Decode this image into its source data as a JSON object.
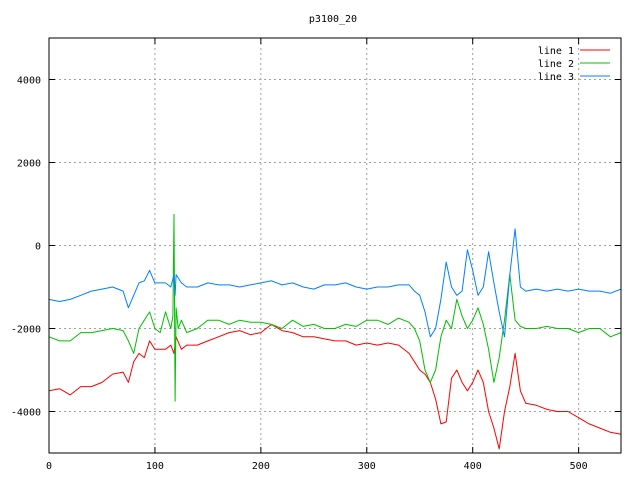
{
  "chart_data": {
    "type": "line",
    "title": "p3100_20",
    "xlabel": "",
    "ylabel": "",
    "xlim": [
      0,
      540
    ],
    "ylim": [
      -5000,
      5000
    ],
    "xticks": [
      0,
      100,
      200,
      300,
      400,
      500
    ],
    "yticks": [
      -4000,
      -2000,
      0,
      2000,
      4000
    ],
    "grid": true,
    "legend": "top-right",
    "series": [
      {
        "name": "line 1",
        "color": "#ff0000",
        "x": [
          0,
          10,
          20,
          30,
          40,
          50,
          60,
          70,
          75,
          80,
          85,
          90,
          95,
          100,
          110,
          115,
          118,
          120,
          125,
          130,
          140,
          150,
          160,
          170,
          180,
          190,
          200,
          210,
          220,
          230,
          240,
          250,
          260,
          270,
          280,
          290,
          300,
          310,
          320,
          330,
          340,
          345,
          350,
          355,
          360,
          365,
          370,
          375,
          380,
          385,
          390,
          395,
          400,
          405,
          410,
          415,
          420,
          425,
          430,
          435,
          440,
          445,
          450,
          460,
          470,
          480,
          490,
          500,
          510,
          520,
          530,
          540
        ],
        "y": [
          -3500,
          -3450,
          -3600,
          -3400,
          -3400,
          -3300,
          -3100,
          -3050,
          -3300,
          -2800,
          -2600,
          -2700,
          -2300,
          -2500,
          -2500,
          -2400,
          -2600,
          -2200,
          -2500,
          -2400,
          -2400,
          -2300,
          -2200,
          -2100,
          -2050,
          -2150,
          -2100,
          -1900,
          -2050,
          -2100,
          -2200,
          -2200,
          -2250,
          -2300,
          -2300,
          -2400,
          -2350,
          -2400,
          -2350,
          -2400,
          -2600,
          -2800,
          -3000,
          -3100,
          -3300,
          -3700,
          -4300,
          -4250,
          -3200,
          -3000,
          -3300,
          -3500,
          -3300,
          -3000,
          -3300,
          -4000,
          -4400,
          -4900,
          -4000,
          -3400,
          -2600,
          -3500,
          -3800,
          -3850,
          -3950,
          -4000,
          -4000,
          -4150,
          -4300,
          -4400,
          -4500,
          -4550
        ]
      },
      {
        "name": "line 2",
        "color": "#00c000",
        "x": [
          0,
          10,
          20,
          30,
          40,
          50,
          60,
          70,
          75,
          80,
          85,
          90,
          95,
          100,
          105,
          110,
          115,
          117,
          118,
          119,
          120,
          122,
          125,
          130,
          140,
          150,
          160,
          170,
          180,
          190,
          200,
          210,
          220,
          230,
          240,
          250,
          260,
          270,
          280,
          290,
          300,
          310,
          320,
          330,
          340,
          345,
          350,
          355,
          360,
          365,
          370,
          375,
          380,
          385,
          390,
          395,
          400,
          405,
          410,
          415,
          420,
          425,
          430,
          435,
          440,
          445,
          450,
          460,
          470,
          480,
          490,
          500,
          510,
          520,
          530,
          540
        ],
        "y": [
          -2200,
          -2300,
          -2300,
          -2100,
          -2100,
          -2050,
          -2000,
          -2050,
          -2300,
          -2600,
          -2000,
          -1800,
          -1600,
          -2000,
          -2100,
          -1600,
          -2000,
          -1700,
          750,
          -3750,
          -1500,
          -2000,
          -1800,
          -2100,
          -2000,
          -1800,
          -1800,
          -1900,
          -1800,
          -1850,
          -1850,
          -1900,
          -2000,
          -1800,
          -1950,
          -1900,
          -2000,
          -2000,
          -1900,
          -1950,
          -1800,
          -1800,
          -1900,
          -1750,
          -1850,
          -2000,
          -2300,
          -3000,
          -3300,
          -3000,
          -2200,
          -1800,
          -2000,
          -1300,
          -1700,
          -2000,
          -1800,
          -1500,
          -1900,
          -2500,
          -3300,
          -2700,
          -1800,
          -700,
          -1800,
          -1950,
          -2000,
          -2000,
          -1950,
          -2000,
          -2000,
          -2100,
          -2000,
          -2000,
          -2200,
          -2100
        ]
      },
      {
        "name": "line 3",
        "color": "#0080ff",
        "x": [
          0,
          10,
          20,
          30,
          40,
          50,
          60,
          70,
          75,
          80,
          85,
          90,
          95,
          100,
          110,
          115,
          118,
          119,
          120,
          125,
          130,
          140,
          150,
          160,
          170,
          180,
          190,
          200,
          210,
          220,
          230,
          240,
          250,
          260,
          270,
          280,
          290,
          300,
          310,
          320,
          330,
          340,
          345,
          350,
          355,
          360,
          365,
          370,
          375,
          380,
          385,
          390,
          395,
          400,
          405,
          410,
          415,
          420,
          425,
          430,
          435,
          440,
          445,
          450,
          460,
          470,
          480,
          490,
          500,
          510,
          520,
          530,
          540
        ],
        "y": [
          -1300,
          -1350,
          -1300,
          -1200,
          -1100,
          -1050,
          -1000,
          -1100,
          -1500,
          -1200,
          -900,
          -850,
          -600,
          -900,
          -900,
          -1000,
          -700,
          -1200,
          -700,
          -900,
          -1000,
          -1000,
          -900,
          -950,
          -950,
          -1000,
          -950,
          -900,
          -850,
          -950,
          -900,
          -1000,
          -1050,
          -950,
          -950,
          -900,
          -1000,
          -1050,
          -1000,
          -1000,
          -950,
          -950,
          -1100,
          -1200,
          -1600,
          -2200,
          -2000,
          -1300,
          -400,
          -1000,
          -1200,
          -1100,
          -100,
          -600,
          -1200,
          -1000,
          -150,
          -900,
          -1600,
          -2200,
          -700,
          400,
          -1000,
          -1100,
          -1050,
          -1100,
          -1050,
          -1100,
          -1050,
          -1100,
          -1100,
          -1150,
          -1050
        ]
      }
    ]
  }
}
